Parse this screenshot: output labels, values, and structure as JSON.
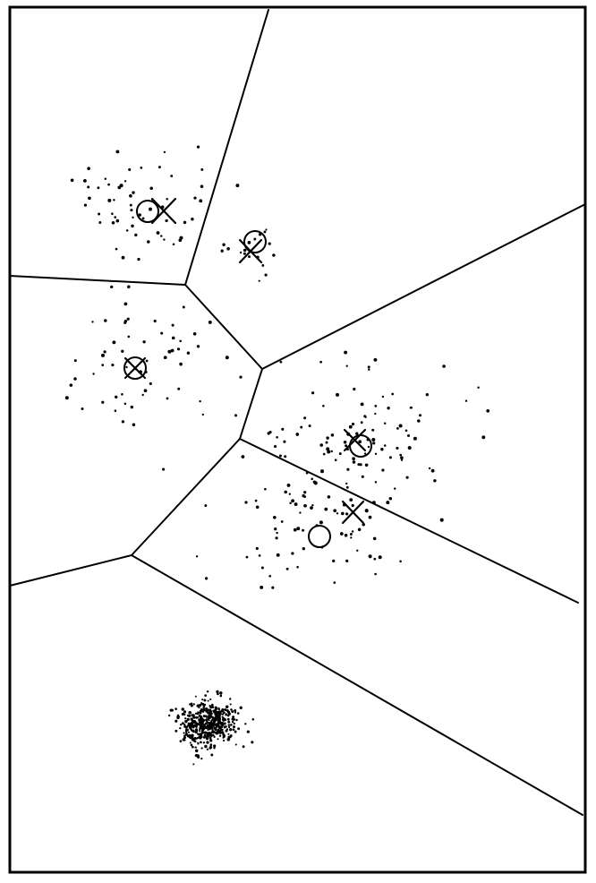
{
  "figure": {
    "type": "voronoi-clustering-diagram",
    "colors": {
      "ink": "#000000",
      "background": "#ffffff"
    },
    "marker_legend": {
      "circle": "circle-marker",
      "cross": "x-marker"
    },
    "clusters": [
      {
        "id": "upper-left",
        "point_count": 60,
        "spread": "loose"
      },
      {
        "id": "upper-middle",
        "point_count": 18,
        "spread": "tight-small"
      },
      {
        "id": "middle-left",
        "point_count": 60,
        "spread": "loose"
      },
      {
        "id": "middle-right",
        "point_count": 110,
        "spread": "loose"
      },
      {
        "id": "lower-right",
        "point_count": 70,
        "spread": "loose"
      },
      {
        "id": "bottom-dense",
        "point_count": 420,
        "spread": "dense"
      }
    ]
  }
}
